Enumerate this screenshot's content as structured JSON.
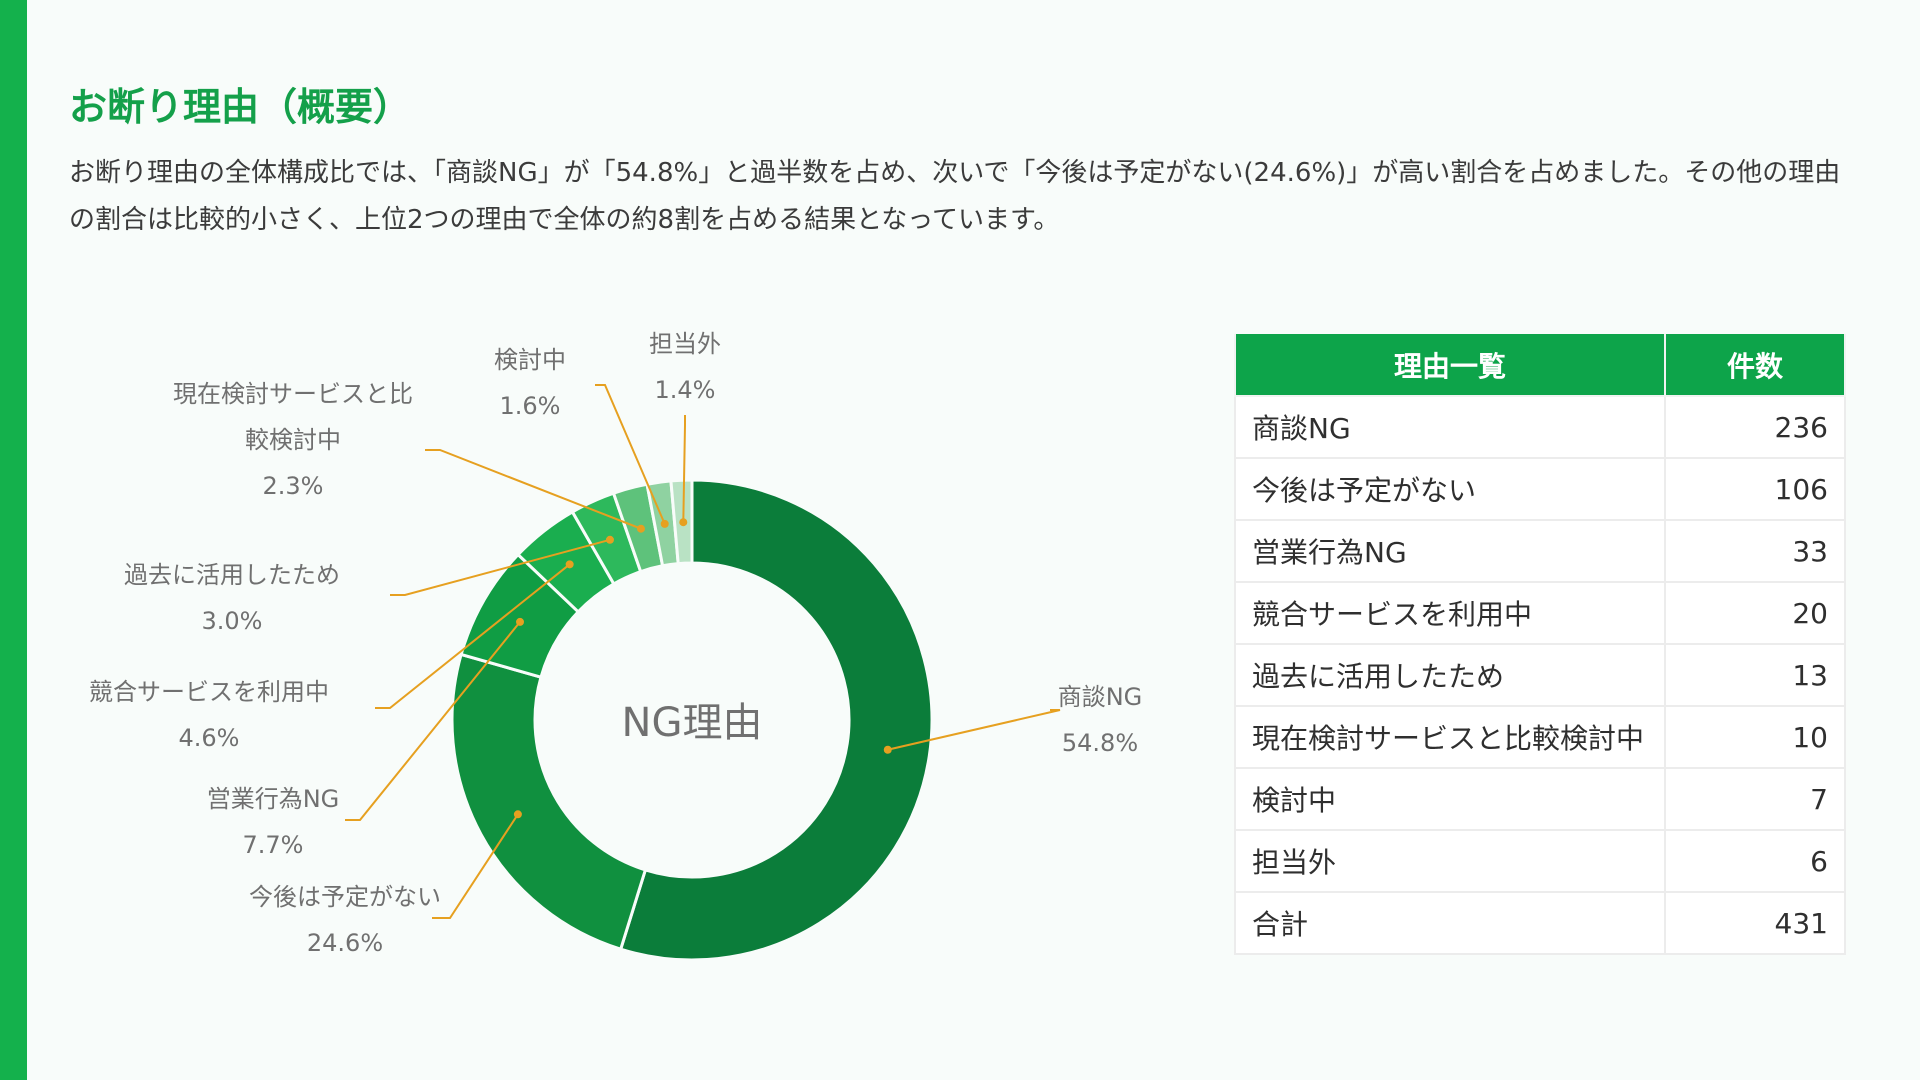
{
  "page": {
    "title": "お断り理由（概要）",
    "description": "お断り理由の全体構成比では、「商談NG」が「54.8%」と過半数を占め、次いで「今後は予定がない(24.6%)」が高い割合を占めました。その他の理由の割合は比較的小さく、上位2つの理由で全体の約8割を占める結果となっています。"
  },
  "colors": {
    "accent": "#14b14c",
    "title": "#14a04a",
    "table_header": "#0da44a",
    "leader_line": "#e6a020"
  },
  "chart_data": {
    "type": "pie",
    "center_label": "NG理由",
    "slices": [
      {
        "label": "商談NG",
        "display_label": [
          "商談NG"
        ],
        "value": 54.8,
        "value_label": "54.8%",
        "color": "#0b7d3a"
      },
      {
        "label": "今後は予定がない",
        "display_label": [
          "今後は予定がない"
        ],
        "value": 24.6,
        "value_label": "24.6%",
        "color": "#10903f"
      },
      {
        "label": "営業行為NG",
        "display_label": [
          "営業行為NG"
        ],
        "value": 7.7,
        "value_label": "7.7%",
        "color": "#109d44"
      },
      {
        "label": "競合サービスを利用中",
        "display_label": [
          "競合サービスを利用中"
        ],
        "value": 4.6,
        "value_label": "4.6%",
        "color": "#1aae4f"
      },
      {
        "label": "過去に活用したため",
        "display_label": [
          "過去に活用したため"
        ],
        "value": 3.0,
        "value_label": "3.0%",
        "color": "#2db95c"
      },
      {
        "label": "現在検討サービスと比較検討中",
        "display_label": [
          "現在検討サービスと比",
          "較検討中"
        ],
        "value": 2.3,
        "value_label": "2.3%",
        "color": "#5ec27b"
      },
      {
        "label": "検討中",
        "display_label": [
          "検討中"
        ],
        "value": 1.6,
        "value_label": "1.6%",
        "color": "#8fd2a1"
      },
      {
        "label": "担当外",
        "display_label": [
          "担当外"
        ],
        "value": 1.4,
        "value_label": "1.4%",
        "color": "#b9e2c4"
      }
    ]
  },
  "table": {
    "headers": [
      "理由一覧",
      "件数"
    ],
    "rows": [
      {
        "reason": "商談NG",
        "count": "236"
      },
      {
        "reason": "今後は予定がない",
        "count": "106"
      },
      {
        "reason": "営業行為NG",
        "count": "33"
      },
      {
        "reason": "競合サービスを利用中",
        "count": "20"
      },
      {
        "reason": "過去に活用したため",
        "count": "13"
      },
      {
        "reason": "現在検討サービスと比較検討中",
        "count": "10"
      },
      {
        "reason": "検討中",
        "count": "7"
      },
      {
        "reason": "担当外",
        "count": "6"
      },
      {
        "reason": "合計",
        "count": "431"
      }
    ]
  }
}
